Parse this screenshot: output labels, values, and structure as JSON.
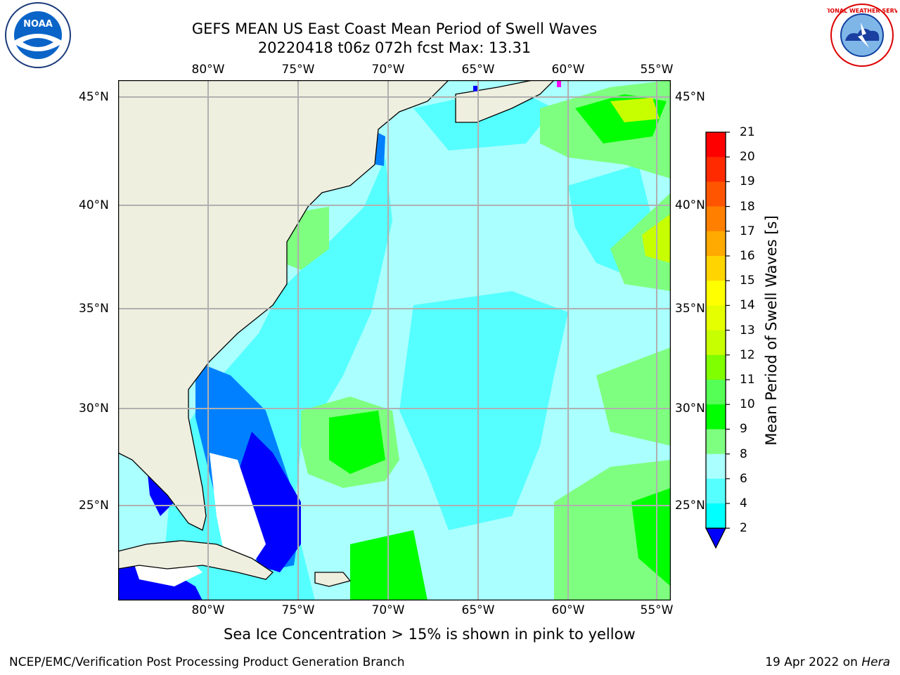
{
  "title": {
    "line1": "GEFS MEAN US East Coast Mean Period of Swell Waves",
    "line2": "20220418 t06z 072h fcst   Max: 13.31"
  },
  "map": {
    "lon_labels": [
      "80°W",
      "75°W",
      "70°W",
      "65°W",
      "60°W",
      "55°W"
    ],
    "lat_labels": [
      "45°N",
      "40°N",
      "35°N",
      "30°N",
      "25°N"
    ],
    "land_color": "#efefdf",
    "grid_color": "#b0b0b0"
  },
  "colorbar": {
    "label": "Mean Period of Swell Waves [s]",
    "ticks": [
      "21",
      "20",
      "19",
      "18",
      "17",
      "16",
      "15",
      "14",
      "13",
      "12",
      "11",
      "10",
      "9",
      "8",
      "6",
      "4",
      "2"
    ],
    "colors": [
      "#ff0000",
      "#ff2a00",
      "#ff5500",
      "#ff7f00",
      "#ffaa00",
      "#ffd400",
      "#ffff00",
      "#e5ff00",
      "#c8ff00",
      "#7fff00",
      "#55ff55",
      "#00ff00",
      "#7fff7f",
      "#aaffff",
      "#55ffff",
      "#00ffff",
      "#0080ff",
      "#0000ff"
    ]
  },
  "note": "Sea Ice Concentration > 15% is shown in pink to yellow",
  "footer": {
    "left": "NCEP/EMC/Verification Post Processing Product Generation Branch",
    "right_date": "19 Apr 2022 on ",
    "right_host": "Hera"
  },
  "logos": {
    "noaa": "NOAA",
    "nws": "NATIONAL WEATHER SERVICE"
  }
}
